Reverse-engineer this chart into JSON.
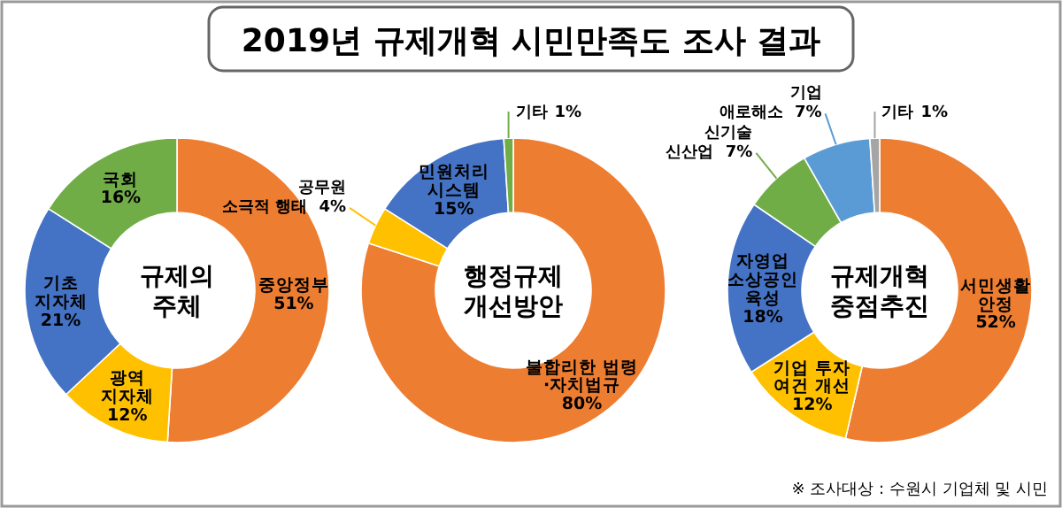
{
  "chart_data": [
    {
      "type": "donut",
      "title": "규제의 주체",
      "annotations": [
        "2019년 규제개혁 시민만족도 조사 결과"
      ],
      "categories": [
        "중앙정부",
        "광역 지자체",
        "기초 지자체",
        "국회"
      ],
      "values": [
        51,
        12,
        21,
        16
      ],
      "value_labels": [
        "51%",
        "12%",
        "21%",
        "16%"
      ],
      "colors": [
        "#ed7d31",
        "#ffc000",
        "#4472c4",
        "#70ad47"
      ]
    },
    {
      "type": "donut",
      "title": "행정규제 개선방안",
      "categories": [
        "불합리한 법령 ·자치법규",
        "공무원 소극적 행태",
        "민원처리 시스템",
        "기타"
      ],
      "values": [
        80,
        4,
        15,
        1
      ],
      "value_labels": [
        "80%",
        "4%",
        "15%",
        "1%"
      ],
      "colors": [
        "#ed7d31",
        "#ffc000",
        "#4472c4",
        "#70ad47"
      ]
    },
    {
      "type": "donut",
      "title": "규제개혁 중점추진",
      "annotations": [
        "※ 조사대상 : 수원시 기업체 및 시민"
      ],
      "categories": [
        "서민생활 안정",
        "기업 투자 여건 개선",
        "자영업 소상공인 육성",
        "신기술 신산업",
        "기업 애로해소",
        "기타"
      ],
      "values": [
        52,
        12,
        18,
        7,
        7,
        1
      ],
      "value_labels": [
        "52%",
        "12%",
        "18%",
        "7%",
        "7%",
        "1%"
      ],
      "colors": [
        "#ed7d31",
        "#ffc000",
        "#4472c4",
        "#70ad47",
        "#5b9bd5",
        "#a5a5a5"
      ]
    }
  ]
}
